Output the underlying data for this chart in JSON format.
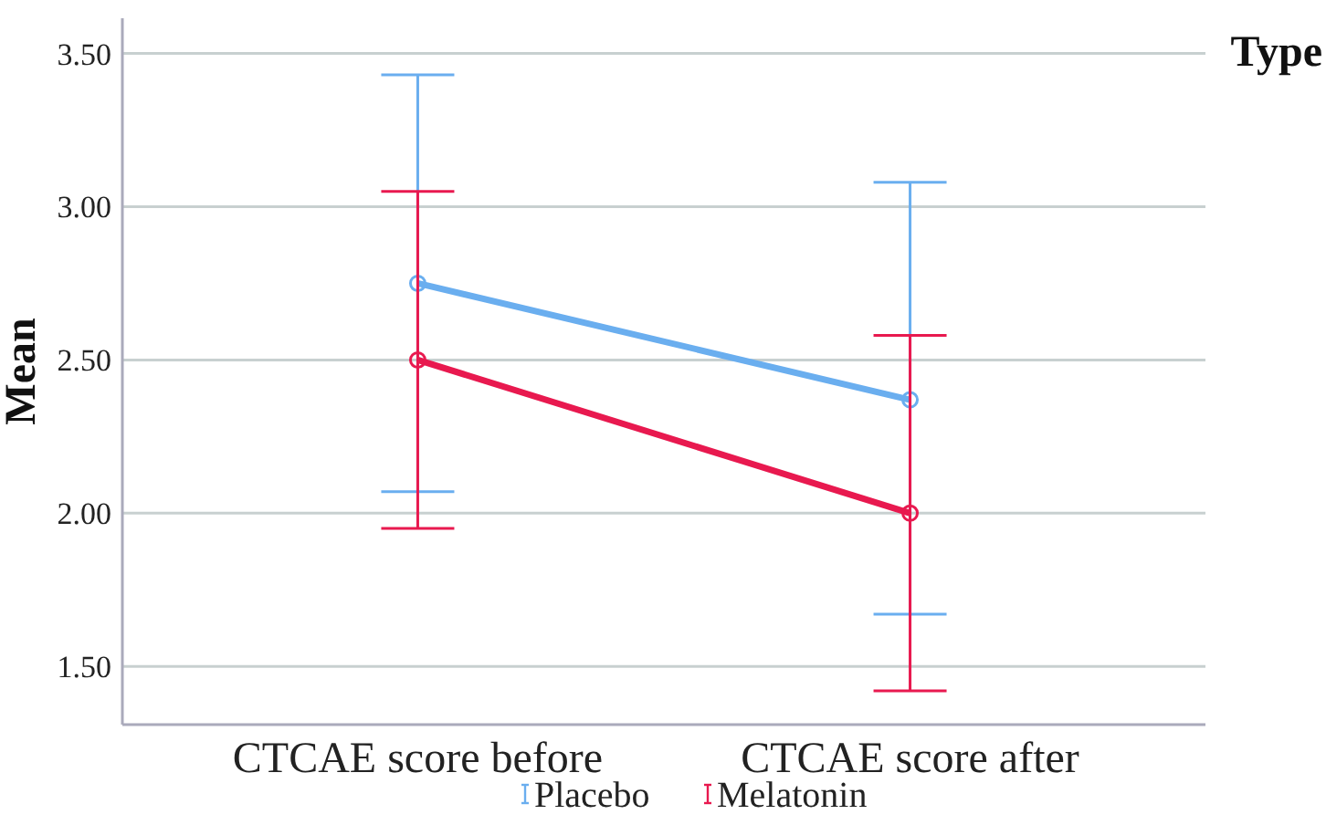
{
  "chart_data": {
    "type": "line",
    "ylabel": "Mean",
    "legend_title": "Type",
    "categories": [
      "CTCAE score before",
      "CTCAE score after"
    ],
    "series": [
      {
        "name": "Placebo",
        "color": "#6aaeef",
        "values": [
          2.75,
          2.37
        ],
        "errors": [
          [
            2.07,
            3.43
          ],
          [
            1.67,
            3.08
          ]
        ]
      },
      {
        "name": "Melatonin",
        "color": "#e8194f",
        "values": [
          2.5,
          2.0
        ],
        "errors": [
          [
            1.95,
            3.05
          ],
          [
            1.42,
            2.58
          ]
        ]
      }
    ],
    "ylim": [
      1.31,
      3.615
    ],
    "yticks": [
      {
        "value": 1.5,
        "label": "1.50"
      },
      {
        "value": 2,
        "label": "2.00"
      },
      {
        "value": 2.5,
        "label": "2.50"
      },
      {
        "value": 3,
        "label": "3.00"
      },
      {
        "value": 3.5,
        "label": "3.50"
      }
    ],
    "grid": "y",
    "legend": "bottom",
    "marker": "circle",
    "line_style": "solid"
  }
}
